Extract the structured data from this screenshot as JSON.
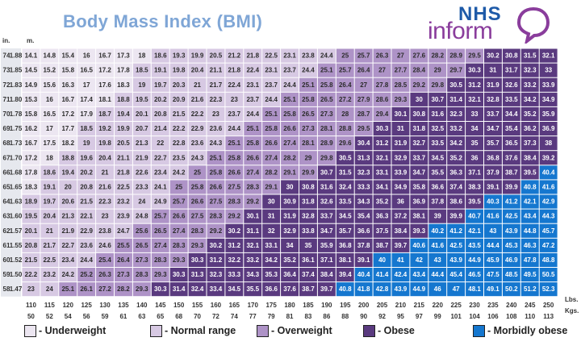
{
  "header": {
    "title": "Body Mass Index (BMI)",
    "logo_top": "NHS",
    "logo_bottom": "inform"
  },
  "units": {
    "height_in": "in.",
    "height_m": "m.",
    "weight_lbs": "Lbs.",
    "weight_kgs": "Kgs."
  },
  "colors": {
    "underweight": "#ece6f1",
    "normal": "#d7c9e3",
    "overweight": "#ae93c7",
    "obese": "#5a3a7f",
    "morbidly_obese": "#1577cf",
    "header_bg": "#e6e8ee"
  },
  "legend": [
    {
      "label": "- Underweight",
      "category": "underweight"
    },
    {
      "label": "- Normal range",
      "category": "normal"
    },
    {
      "label": "- Overweight",
      "category": "overweight"
    },
    {
      "label": "- Obese",
      "category": "obese"
    },
    {
      "label": "- Morbidly obese",
      "category": "morbidly_obese"
    }
  ],
  "chart_data": {
    "type": "heatmap",
    "title": "Body Mass Index (BMI)",
    "xlabel": "Lbs. / Kgs.",
    "ylabel": "in. / m.",
    "heights_in": [
      "74",
      "73",
      "72",
      "71",
      "70",
      "69",
      "68",
      "67",
      "66",
      "65",
      "64",
      "63",
      "62",
      "61",
      "60",
      "59",
      "58"
    ],
    "heights_m": [
      "1.88",
      "1.85",
      "1.83",
      "1.80",
      "1.78",
      "1.75",
      "1.73",
      "1.70",
      "1.68",
      "1.65",
      "1.63",
      "1.60",
      "1.57",
      "1.55",
      "1.52",
      "1.50",
      "1.47"
    ],
    "weights_lbs": [
      "110",
      "115",
      "120",
      "125",
      "130",
      "135",
      "140",
      "145",
      "150",
      "155",
      "160",
      "165",
      "170",
      "175",
      "180",
      "185",
      "190",
      "195",
      "200",
      "205",
      "210",
      "215",
      "220",
      "225",
      "230",
      "235",
      "240",
      "245",
      "250"
    ],
    "weights_kgs": [
      "50",
      "52",
      "54",
      "56",
      "59",
      "61",
      "63",
      "65",
      "68",
      "70",
      "72",
      "74",
      "77",
      "79",
      "81",
      "83",
      "86",
      "88",
      "90",
      "92",
      "95",
      "97",
      "99",
      "101",
      "104",
      "106",
      "108",
      "110",
      "113"
    ],
    "thresholds": {
      "normal": 18.5,
      "overweight": 25,
      "obese": 30,
      "morbidly_obese": 40
    },
    "bmi": [
      [
        "14.1",
        "14.8",
        "15.4",
        "16",
        "16.7",
        "17.3",
        "18",
        "18.6",
        "19.3",
        "19.9",
        "20.5",
        "21.2",
        "21.8",
        "22.5",
        "23.1",
        "23.8",
        "24.4",
        "25",
        "25.7",
        "26.3",
        "27",
        "27.6",
        "28.2",
        "28.9",
        "29.5",
        "30.2",
        "30.8",
        "31.5",
        "32.1"
      ],
      [
        "14.5",
        "15.2",
        "15.8",
        "16.5",
        "17.2",
        "17.8",
        "18.5",
        "19.1",
        "19.8",
        "20.4",
        "21.1",
        "21.8",
        "22.4",
        "23.1",
        "23.7",
        "24.4",
        "25.1",
        "25.7",
        "26.4",
        "27",
        "27.7",
        "28.4",
        "29",
        "29.7",
        "30.3",
        "31",
        "31.7",
        "32.3",
        "33"
      ],
      [
        "14.9",
        "15.6",
        "16.3",
        "17",
        "17.6",
        "18.3",
        "19",
        "19.7",
        "20.3",
        "21",
        "21.7",
        "22.4",
        "23.1",
        "23.7",
        "24.4",
        "25.1",
        "25.8",
        "26.4",
        "27",
        "27.8",
        "28.5",
        "29.2",
        "29.8",
        "30.5",
        "31.2",
        "31.9",
        "32.6",
        "33.2",
        "33.9"
      ],
      [
        "15.3",
        "16",
        "16.7",
        "17.4",
        "18.1",
        "18.8",
        "19.5",
        "20.2",
        "20.9",
        "21.6",
        "22.3",
        "23",
        "23.7",
        "24.4",
        "25.1",
        "25.8",
        "26.5",
        "27.2",
        "27.9",
        "28.6",
        "29.3",
        "30",
        "30.7",
        "31.4",
        "32.1",
        "32.8",
        "33.5",
        "34.2",
        "34.9"
      ],
      [
        "15.8",
        "16.5",
        "17.2",
        "17.9",
        "18.7",
        "19.4",
        "20.1",
        "20.8",
        "21.5",
        "22.2",
        "23",
        "23.7",
        "24.4",
        "25.1",
        "25.8",
        "26.5",
        "27.3",
        "28",
        "28.7",
        "29.4",
        "30.1",
        "30.8",
        "31.6",
        "32.3",
        "33",
        "33.7",
        "34.4",
        "35.2",
        "35.9"
      ],
      [
        "16.2",
        "17",
        "17.7",
        "18.5",
        "19.2",
        "19.9",
        "20.7",
        "21.4",
        "22.2",
        "22.9",
        "23.6",
        "24.4",
        "25.1",
        "25.8",
        "26.6",
        "27.3",
        "28.1",
        "28.8",
        "29.5",
        "30.3",
        "31",
        "31.8",
        "32.5",
        "33.2",
        "34",
        "34.7",
        "35.4",
        "36.2",
        "36.9"
      ],
      [
        "16.7",
        "17.5",
        "18.2",
        "19",
        "19.8",
        "20.5",
        "21.3",
        "22",
        "22.8",
        "23.6",
        "24.3",
        "25.1",
        "25.8",
        "26.6",
        "27.4",
        "28.1",
        "28.9",
        "29.6",
        "30.4",
        "31.2",
        "31.9",
        "32.7",
        "33.5",
        "34.2",
        "35",
        "35.7",
        "36.5",
        "37.3",
        "38"
      ],
      [
        "17.2",
        "18",
        "18.8",
        "19.6",
        "20.4",
        "21.1",
        "21.9",
        "22.7",
        "23.5",
        "24.3",
        "25.1",
        "25.8",
        "26.6",
        "27.4",
        "28.2",
        "29",
        "29.8",
        "30.5",
        "31.3",
        "32.1",
        "32.9",
        "33.7",
        "34.5",
        "35.2",
        "36",
        "36.8",
        "37.6",
        "38.4",
        "39.2"
      ],
      [
        "17.8",
        "18.6",
        "19.4",
        "20.2",
        "21",
        "21.8",
        "22.6",
        "23.4",
        "24.2",
        "25",
        "25.8",
        "26.6",
        "27.4",
        "28.2",
        "29.1",
        "29.9",
        "30.7",
        "31.5",
        "32.3",
        "33.1",
        "33.9",
        "34.7",
        "35.5",
        "36.3",
        "37.1",
        "37.9",
        "38.7",
        "39.5",
        "40.4"
      ],
      [
        "18.3",
        "19.1",
        "20",
        "20.8",
        "21.6",
        "22.5",
        "23.3",
        "24.1",
        "25",
        "25.8",
        "26.6",
        "27.5",
        "28.3",
        "29.1",
        "30",
        "30.8",
        "31.6",
        "32.4",
        "33.3",
        "34.1",
        "34.9",
        "35.8",
        "36.6",
        "37.4",
        "38.3",
        "39.1",
        "39.9",
        "40.8",
        "41.6"
      ],
      [
        "18.9",
        "19.7",
        "20.6",
        "21.5",
        "22.3",
        "23.2",
        "24",
        "24.9",
        "25.7",
        "26.6",
        "27.5",
        "28.3",
        "29.2",
        "30",
        "30.9",
        "31.8",
        "32.6",
        "33.5",
        "34.3",
        "35.2",
        "36",
        "36.9",
        "37.8",
        "38.6",
        "39.5",
        "40.3",
        "41.2",
        "42.1",
        "42.9"
      ],
      [
        "19.5",
        "20.4",
        "21.3",
        "22.1",
        "23",
        "23.9",
        "24.8",
        "25.7",
        "26.6",
        "27.5",
        "28.3",
        "29.2",
        "30.1",
        "31",
        "31.9",
        "32.8",
        "33.7",
        "34.5",
        "35.4",
        "36.3",
        "37.2",
        "38.1",
        "39",
        "39.9",
        "40.7",
        "41.6",
        "42.5",
        "43.4",
        "44.3"
      ],
      [
        "20.1",
        "21",
        "21.9",
        "22.9",
        "23.8",
        "24.7",
        "25.6",
        "26.5",
        "27.4",
        "28.3",
        "29.2",
        "30.2",
        "31.1",
        "32",
        "32.9",
        "33.8",
        "34.7",
        "35.7",
        "36.6",
        "37.5",
        "38.4",
        "39.3",
        "40.2",
        "41.2",
        "42.1",
        "43",
        "43.9",
        "44.8",
        "45.7"
      ],
      [
        "20.8",
        "21.7",
        "22.7",
        "23.6",
        "24.6",
        "25.5",
        "26.5",
        "27.4",
        "28.3",
        "29.3",
        "30.2",
        "31.2",
        "32.1",
        "33.1",
        "34",
        "35",
        "35.9",
        "36.8",
        "37.8",
        "38.7",
        "39.7",
        "40.6",
        "41.6",
        "42.5",
        "43.5",
        "44.4",
        "45.3",
        "46.3",
        "47.2"
      ],
      [
        "21.5",
        "22.5",
        "23.4",
        "24.4",
        "25.4",
        "26.4",
        "27.3",
        "28.3",
        "29.3",
        "30.3",
        "31.2",
        "32.2",
        "33.2",
        "34.2",
        "35.2",
        "36.1",
        "37.1",
        "38.1",
        "39.1",
        "40",
        "41",
        "42",
        "43",
        "43.9",
        "44.9",
        "45.9",
        "46.9",
        "47.8",
        "48.8"
      ],
      [
        "22.2",
        "23.2",
        "24.2",
        "25.2",
        "26.3",
        "27.3",
        "28.3",
        "29.3",
        "30.3",
        "31.3",
        "32.3",
        "33.3",
        "34.3",
        "35.3",
        "36.4",
        "37.4",
        "38.4",
        "39.4",
        "40.4",
        "41.4",
        "42.4",
        "43.4",
        "44.4",
        "45.4",
        "46.5",
        "47.5",
        "48.5",
        "49.5",
        "50.5"
      ],
      [
        "23",
        "24",
        "25.1",
        "26.1",
        "27.2",
        "28.2",
        "29.3",
        "30.3",
        "31.4",
        "32.4",
        "33.4",
        "34.5",
        "35.5",
        "36.6",
        "37.6",
        "38.7",
        "39.7",
        "40.8",
        "41.8",
        "42.8",
        "43.9",
        "44.9",
        "46",
        "47",
        "48.1",
        "49.1",
        "50.2",
        "51.2",
        "52.3"
      ]
    ]
  }
}
